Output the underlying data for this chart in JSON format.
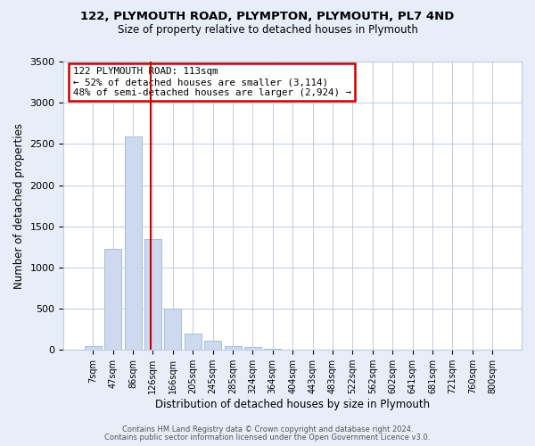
{
  "title1": "122, PLYMOUTH ROAD, PLYMPTON, PLYMOUTH, PL7 4ND",
  "title2": "Size of property relative to detached houses in Plymouth",
  "xlabel": "Distribution of detached houses by size in Plymouth",
  "ylabel": "Number of detached properties",
  "bar_labels": [
    "7sqm",
    "47sqm",
    "86sqm",
    "126sqm",
    "166sqm",
    "205sqm",
    "245sqm",
    "285sqm",
    "324sqm",
    "364sqm",
    "404sqm",
    "443sqm",
    "483sqm",
    "522sqm",
    "562sqm",
    "602sqm",
    "641sqm",
    "681sqm",
    "721sqm",
    "760sqm",
    "800sqm"
  ],
  "bar_values": [
    50,
    1230,
    2590,
    1340,
    500,
    200,
    110,
    50,
    30,
    10,
    5,
    2,
    2,
    0,
    0,
    0,
    0,
    0,
    0,
    0,
    0
  ],
  "bar_color": "#ccd9ee",
  "bar_edge_color": "#a8bedd",
  "marker_label": "122 PLYMOUTH ROAD: 113sqm",
  "annotation_line1": "← 52% of detached houses are smaller (3,114)",
  "annotation_line2": "48% of semi-detached houses are larger (2,924) →",
  "marker_color": "#cc0000",
  "box_edge_color": "#cc0000",
  "ylim": [
    0,
    3500
  ],
  "yticks": [
    0,
    500,
    1000,
    1500,
    2000,
    2500,
    3000,
    3500
  ],
  "footer1": "Contains HM Land Registry data © Crown copyright and database right 2024.",
  "footer2": "Contains public sector information licensed under the Open Government Licence v3.0.",
  "bg_color": "#e8eef8",
  "plot_bg_color": "#ffffff",
  "grid_color": "#c0cce0"
}
